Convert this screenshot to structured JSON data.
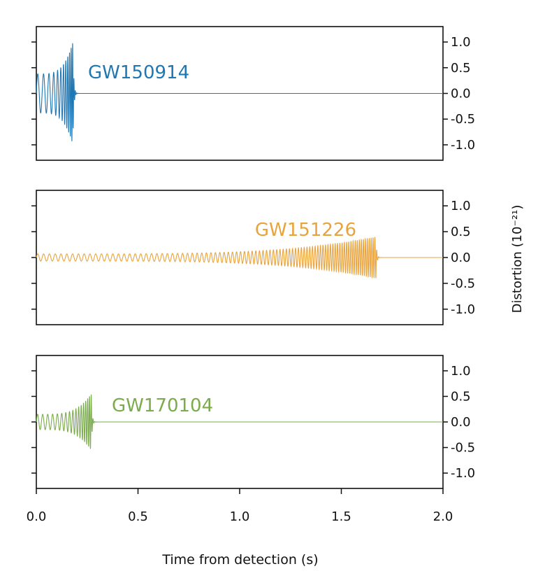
{
  "chart_data": [
    {
      "type": "line",
      "title": "",
      "label": "GW150914",
      "label_color": "#1f77b4",
      "color": "#1f77b4",
      "xlim": [
        0.0,
        2.0
      ],
      "ylim": [
        -1.3,
        1.3
      ],
      "yticks": [
        -1.0,
        -0.5,
        0.0,
        0.5,
        1.0
      ],
      "ytick_labels": [
        "-1.0",
        "-0.5",
        "0.0",
        "0.5",
        "1.0"
      ],
      "signal": {
        "start": 0.0,
        "merger": 0.18,
        "end_of_ringdown": 0.19,
        "start_amplitude": 0.38,
        "peak_amplitude": 1.0,
        "start_freq_hz": 35,
        "end_freq_hz": 150
      }
    },
    {
      "type": "line",
      "title": "",
      "label": "GW151226",
      "label_color": "#e8a33d",
      "color": "#e8a33d",
      "xlim": [
        0.0,
        2.0
      ],
      "ylim": [
        -1.3,
        1.3
      ],
      "yticks": [
        -1.0,
        -0.5,
        0.0,
        0.5,
        1.0
      ],
      "ytick_labels": [
        "-1.0",
        "-0.5",
        "0.0",
        "0.5",
        "1.0"
      ],
      "signal": {
        "start": 0.0,
        "merger": 1.67,
        "end_of_ringdown": 1.68,
        "start_amplitude": 0.07,
        "peak_amplitude": 0.4,
        "start_freq_hz": 35,
        "end_freq_hz": 110
      }
    },
    {
      "type": "line",
      "title": "",
      "label": "GW170104",
      "label_color": "#7aab4c",
      "color": "#7aab4c",
      "xlim": [
        0.0,
        2.0
      ],
      "ylim": [
        -1.3,
        1.3
      ],
      "yticks": [
        -1.0,
        -0.5,
        0.0,
        0.5,
        1.0
      ],
      "ytick_labels": [
        "-1.0",
        "-0.5",
        "0.0",
        "0.5",
        "1.0"
      ],
      "signal": {
        "start": 0.0,
        "merger": 0.27,
        "end_of_ringdown": 0.28,
        "start_amplitude": 0.15,
        "peak_amplitude": 0.55,
        "start_freq_hz": 40,
        "end_freq_hz": 120
      }
    }
  ],
  "axes": {
    "xticks": [
      0.0,
      0.5,
      1.0,
      1.5,
      2.0
    ],
    "xtick_labels": [
      "0.0",
      "0.5",
      "1.0",
      "1.5",
      "2.0"
    ],
    "xlabel": "Time from detection (s)",
    "ylabel": "Distortion (10⁻²¹)",
    "grid": false
  }
}
